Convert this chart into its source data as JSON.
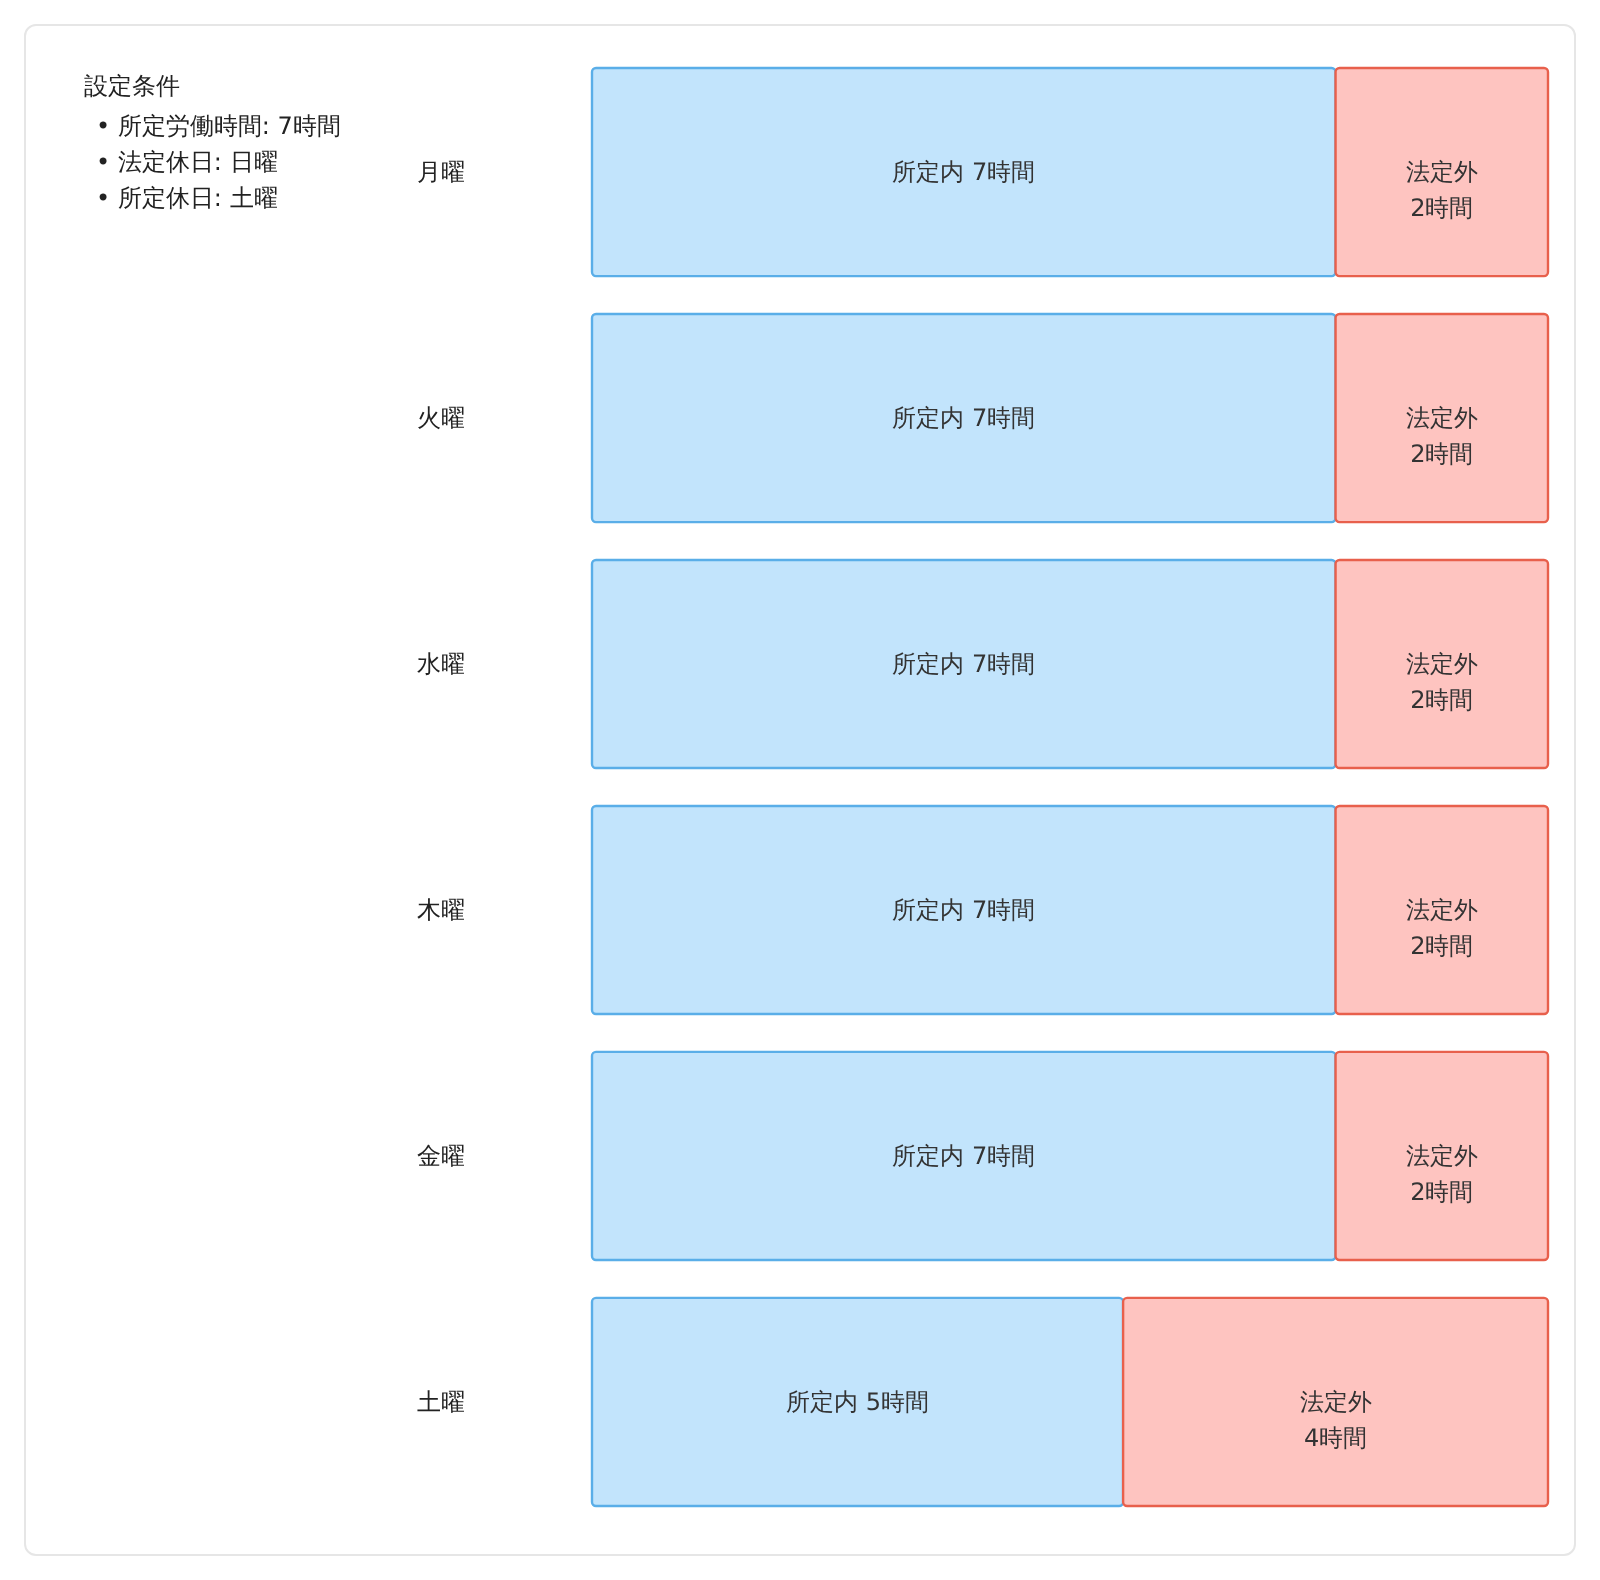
{
  "chart_data": {
    "type": "bar",
    "orientation": "horizontal",
    "stacked": true,
    "categories": [
      "月曜",
      "火曜",
      "水曜",
      "木曜",
      "金曜",
      "土曜"
    ],
    "series": [
      {
        "color": "#c2e4fc",
        "values": [
          7,
          7,
          7,
          7,
          7,
          5
        ],
        "value_labels": [
          "所定内 7時間",
          "所定内 7時間",
          "所定内 7時間",
          "所定内 7時間",
          "所定内 7時間",
          "所定内 5時間"
        ]
      },
      {
        "color": "#fec4c0",
        "values": [
          2,
          2,
          2,
          2,
          2,
          4
        ],
        "value_labels": [
          "法定外\n2時間",
          "法定外\n2時間",
          "法定外\n2時間",
          "法定外\n2時間",
          "法定外\n2時間",
          "法定外\n4時間"
        ]
      }
    ],
    "xlim": [
      0,
      9
    ],
    "tick_labels": "y",
    "annotations": [
      "設定条件",
      "• 所定労働時間: 7時間",
      "• 法定休日: 日曜",
      "• 所定休日: 土曜"
    ]
  }
}
